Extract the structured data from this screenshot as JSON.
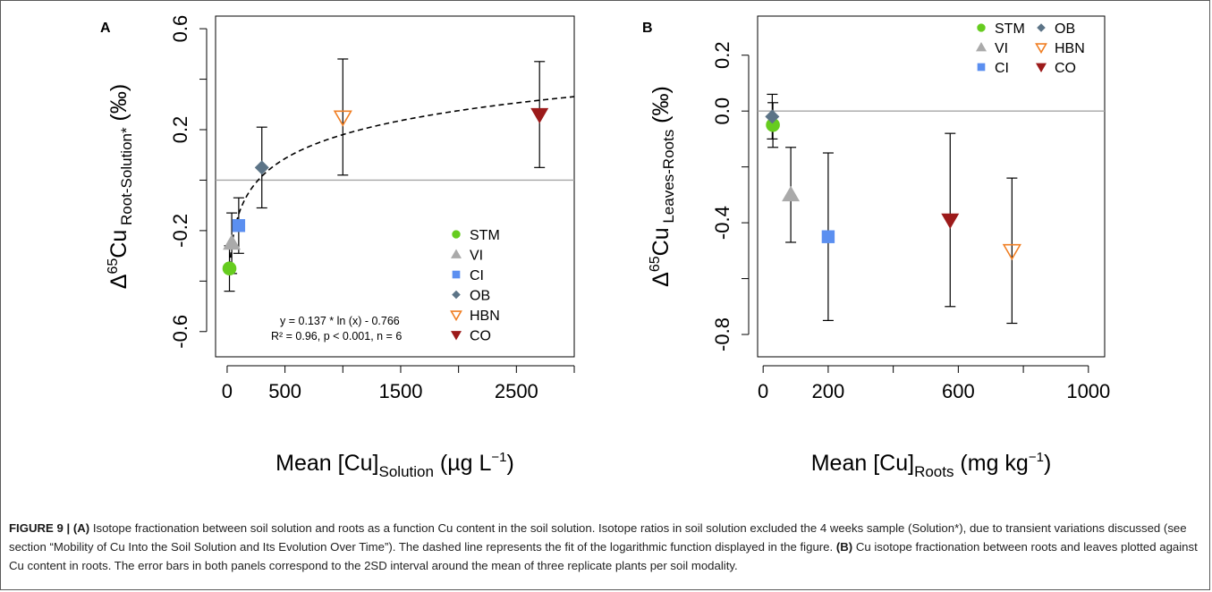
{
  "chart_data": [
    {
      "type": "scatter",
      "panel_label": "A",
      "xlabel_main": "Mean [Cu]",
      "xlabel_sub": "Solution",
      "xlabel_unit": "(µg L",
      "xlabel_exp": "−1",
      "xlabel_close": ")",
      "ylabel_main": "Δ",
      "ylabel_sup": "65",
      "ylabel_cu": "Cu",
      "ylabel_sub": "Root-Solution*",
      "ylabel_unit": "(‰)",
      "xlim": [
        -100,
        3000
      ],
      "ylim": [
        -0.7,
        0.65
      ],
      "xticks": [
        0,
        500,
        1500,
        2500
      ],
      "xtick_labels": [
        "0",
        "500",
        "1500",
        "2500"
      ],
      "xticks_minor": [
        1000,
        2000,
        3000
      ],
      "yticks": [
        -0.6,
        -0.2,
        0.2,
        0.6
      ],
      "ytick_labels": [
        "-0.6",
        "-0.2",
        "0.2",
        "0.6"
      ],
      "yticks_minor": [
        -0.4,
        0.0,
        0.4
      ],
      "reference_line_y": 0.0,
      "fit": {
        "equation": "y = 0.137 * ln (x) - 0.766",
        "stats": "R² = 0.96, p < 0.001, n = 6",
        "a": 0.137,
        "b": -0.766,
        "x_start": 22,
        "x_end": 3000
      },
      "points": [
        {
          "name": "STM",
          "x": 20,
          "y": -0.35,
          "err": 0.09
        },
        {
          "name": "VI",
          "x": 40,
          "y": -0.25,
          "err": 0.12
        },
        {
          "name": "CI",
          "x": 100,
          "y": -0.18,
          "err": 0.11
        },
        {
          "name": "OB",
          "x": 300,
          "y": 0.05,
          "err": 0.16
        },
        {
          "name": "HBN",
          "x": 1000,
          "y": 0.25,
          "err": 0.23
        },
        {
          "name": "CO",
          "x": 2700,
          "y": 0.26,
          "err": 0.21
        }
      ],
      "legend": [
        "STM",
        "VI",
        "CI",
        "OB",
        "HBN",
        "CO"
      ],
      "legend_position": "bottom-right"
    },
    {
      "type": "scatter",
      "panel_label": "B",
      "xlabel_main": "Mean [Cu]",
      "xlabel_sub": "Roots",
      "xlabel_unit": "(mg kg",
      "xlabel_exp": "−1",
      "xlabel_close": ")",
      "ylabel_main": "Δ",
      "ylabel_sup": "65",
      "ylabel_cu": "Cu",
      "ylabel_sub": "Leaves-Roots",
      "ylabel_unit": "(‰)",
      "xlim": [
        -17,
        1050
      ],
      "ylim": [
        -0.88,
        0.34
      ],
      "xticks": [
        0,
        200,
        600,
        1000
      ],
      "xtick_labels": [
        "0",
        "200",
        "600",
        "1000"
      ],
      "xticks_minor": [
        400,
        800
      ],
      "yticks": [
        -0.8,
        -0.4,
        0.0,
        0.2
      ],
      "ytick_labels": [
        "-0.8",
        "-0.4",
        "0.0",
        "0.2"
      ],
      "yticks_minor": [
        -0.6,
        -0.2
      ],
      "reference_line_y": 0.0,
      "points": [
        {
          "name": "STM",
          "x": 30,
          "y": -0.05,
          "err": 0.08
        },
        {
          "name": "OB",
          "x": 28,
          "y": -0.02,
          "err": 0.08
        },
        {
          "name": "VI",
          "x": 85,
          "y": -0.3,
          "err": 0.17
        },
        {
          "name": "CI",
          "x": 200,
          "y": -0.45,
          "err": 0.3
        },
        {
          "name": "CO",
          "x": 575,
          "y": -0.39,
          "err": 0.31
        },
        {
          "name": "HBN",
          "x": 765,
          "y": -0.5,
          "err": 0.26
        }
      ],
      "legend": [
        "STM",
        "VI",
        "CI",
        "OB",
        "HBN",
        "CO"
      ],
      "legend_position": "top-right"
    }
  ],
  "series_colors": {
    "STM": "#66cc1f",
    "VI": "#aaaaaa",
    "CI": "#5b8ff0",
    "OB": "#5c7487",
    "HBN": "#f07f24",
    "CO": "#9c1a1a"
  },
  "series_markers": {
    "STM": "circle",
    "VI": "triangle-up",
    "CI": "square",
    "OB": "diamond",
    "HBN": "triangle-down-open",
    "CO": "triangle-down"
  },
  "caption": {
    "figure_label": "FIGURE 9 |",
    "a_label": "(A)",
    "a_text": " Isotope fractionation between soil solution and roots as a function Cu content in the soil solution. Isotope ratios in soil solution excluded the 4 weeks sample (Solution*), due to transient variations discussed (see section “Mobility of Cu Into the Soil Solution and Its Evolution Over Time”). The dashed line represents the fit of the logarithmic function displayed in the figure. ",
    "b_label": "(B)",
    "b_text": " Cu isotope fractionation between roots and leaves plotted against Cu content in roots. The error bars in both panels correspond to the 2SD interval around the mean of three replicate plants per soil modality."
  }
}
